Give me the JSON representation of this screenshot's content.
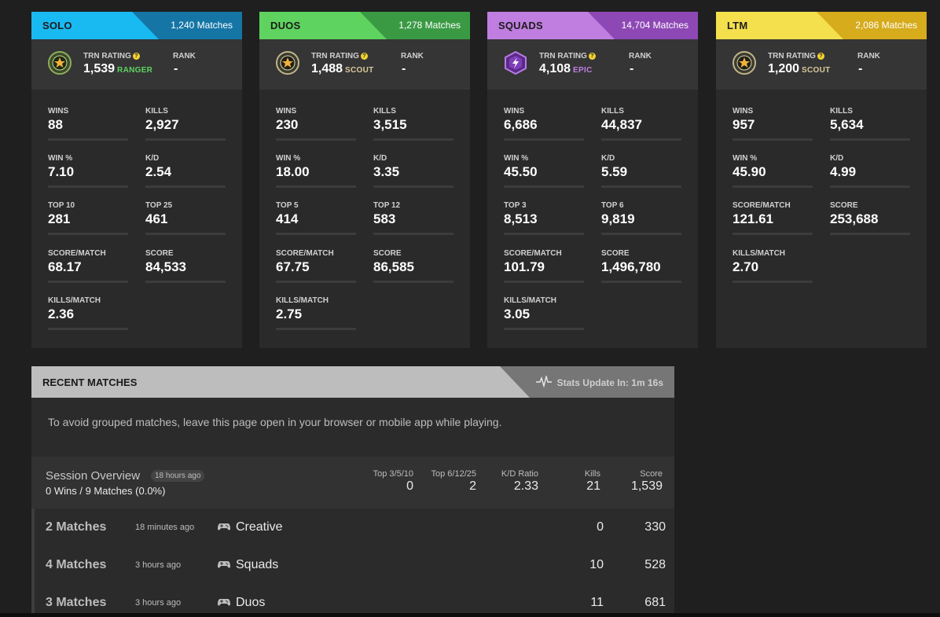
{
  "colors": {
    "solo": "#19b9f2",
    "duos": "#5fd35f",
    "squads": "#b57be0",
    "ltm": "#f3e04c"
  },
  "cards": [
    {
      "mode": "SOLO",
      "matches": "1,240 Matches",
      "rating_label": "TRN RATING",
      "rating": "1,539",
      "tier": "RANGER",
      "rank_label": "RANK",
      "rank": "-",
      "stats": [
        {
          "label": "WINS",
          "value": "88"
        },
        {
          "label": "KILLS",
          "value": "2,927"
        },
        {
          "label": "WIN %",
          "value": "7.10"
        },
        {
          "label": "K/D",
          "value": "2.54"
        },
        {
          "label": "TOP 10",
          "value": "281"
        },
        {
          "label": "TOP 25",
          "value": "461"
        },
        {
          "label": "SCORE/MATCH",
          "value": "68.17"
        },
        {
          "label": "SCORE",
          "value": "84,533"
        },
        {
          "label": "KILLS/MATCH",
          "value": "2.36"
        }
      ]
    },
    {
      "mode": "DUOS",
      "matches": "1,278 Matches",
      "rating_label": "TRN RATING",
      "rating": "1,488",
      "tier": "SCOUT",
      "rank_label": "RANK",
      "rank": "-",
      "stats": [
        {
          "label": "WINS",
          "value": "230"
        },
        {
          "label": "KILLS",
          "value": "3,515"
        },
        {
          "label": "WIN %",
          "value": "18.00"
        },
        {
          "label": "K/D",
          "value": "3.35"
        },
        {
          "label": "TOP 5",
          "value": "414"
        },
        {
          "label": "TOP 12",
          "value": "583"
        },
        {
          "label": "SCORE/MATCH",
          "value": "67.75"
        },
        {
          "label": "SCORE",
          "value": "86,585"
        },
        {
          "label": "KILLS/MATCH",
          "value": "2.75"
        }
      ]
    },
    {
      "mode": "SQUADS",
      "matches": "14,704 Matches",
      "rating_label": "TRN RATING",
      "rating": "4,108",
      "tier": "EPIC",
      "rank_label": "RANK",
      "rank": "-",
      "stats": [
        {
          "label": "WINS",
          "value": "6,686"
        },
        {
          "label": "KILLS",
          "value": "44,837"
        },
        {
          "label": "WIN %",
          "value": "45.50"
        },
        {
          "label": "K/D",
          "value": "5.59"
        },
        {
          "label": "TOP 3",
          "value": "8,513"
        },
        {
          "label": "TOP 6",
          "value": "9,819"
        },
        {
          "label": "SCORE/MATCH",
          "value": "101.79"
        },
        {
          "label": "SCORE",
          "value": "1,496,780"
        },
        {
          "label": "KILLS/MATCH",
          "value": "3.05"
        }
      ]
    },
    {
      "mode": "LTM",
      "matches": "2,086 Matches",
      "rating_label": "TRN RATING",
      "rating": "1,200",
      "tier": "SCOUT",
      "rank_label": "RANK",
      "rank": "-",
      "stats": [
        {
          "label": "WINS",
          "value": "957"
        },
        {
          "label": "KILLS",
          "value": "5,634"
        },
        {
          "label": "WIN %",
          "value": "45.90"
        },
        {
          "label": "K/D",
          "value": "4.99"
        },
        {
          "label": "SCORE/MATCH",
          "value": "121.61"
        },
        {
          "label": "SCORE",
          "value": "253,688"
        },
        {
          "label": "KILLS/MATCH",
          "value": "2.70"
        }
      ]
    }
  ],
  "recent": {
    "title": "RECENT MATCHES",
    "update_text": "Stats Update In: 1m 16s",
    "notice": "To avoid grouped matches, leave this page open in your browser or mobile app while playing.",
    "session": {
      "title": "Session Overview",
      "ago": "18 hours ago",
      "summary": "0 Wins / 9 Matches (0.0%)",
      "columns": [
        {
          "header": "Top 3/5/10",
          "value": "0"
        },
        {
          "header": "Top 6/12/25",
          "value": "2"
        },
        {
          "header": "K/D Ratio",
          "value": "2.33"
        },
        {
          "header": "Kills",
          "value": "21"
        },
        {
          "header": "Score",
          "value": "1,539"
        }
      ]
    },
    "rows": [
      {
        "matches": "2 Matches",
        "ago": "18 minutes ago",
        "mode": "Creative",
        "kills": "0",
        "score": "330"
      },
      {
        "matches": "4 Matches",
        "ago": "3 hours ago",
        "mode": "Squads",
        "kills": "10",
        "score": "528"
      },
      {
        "matches": "3 Matches",
        "ago": "3 hours ago",
        "mode": "Duos",
        "kills": "11",
        "score": "681"
      }
    ]
  }
}
